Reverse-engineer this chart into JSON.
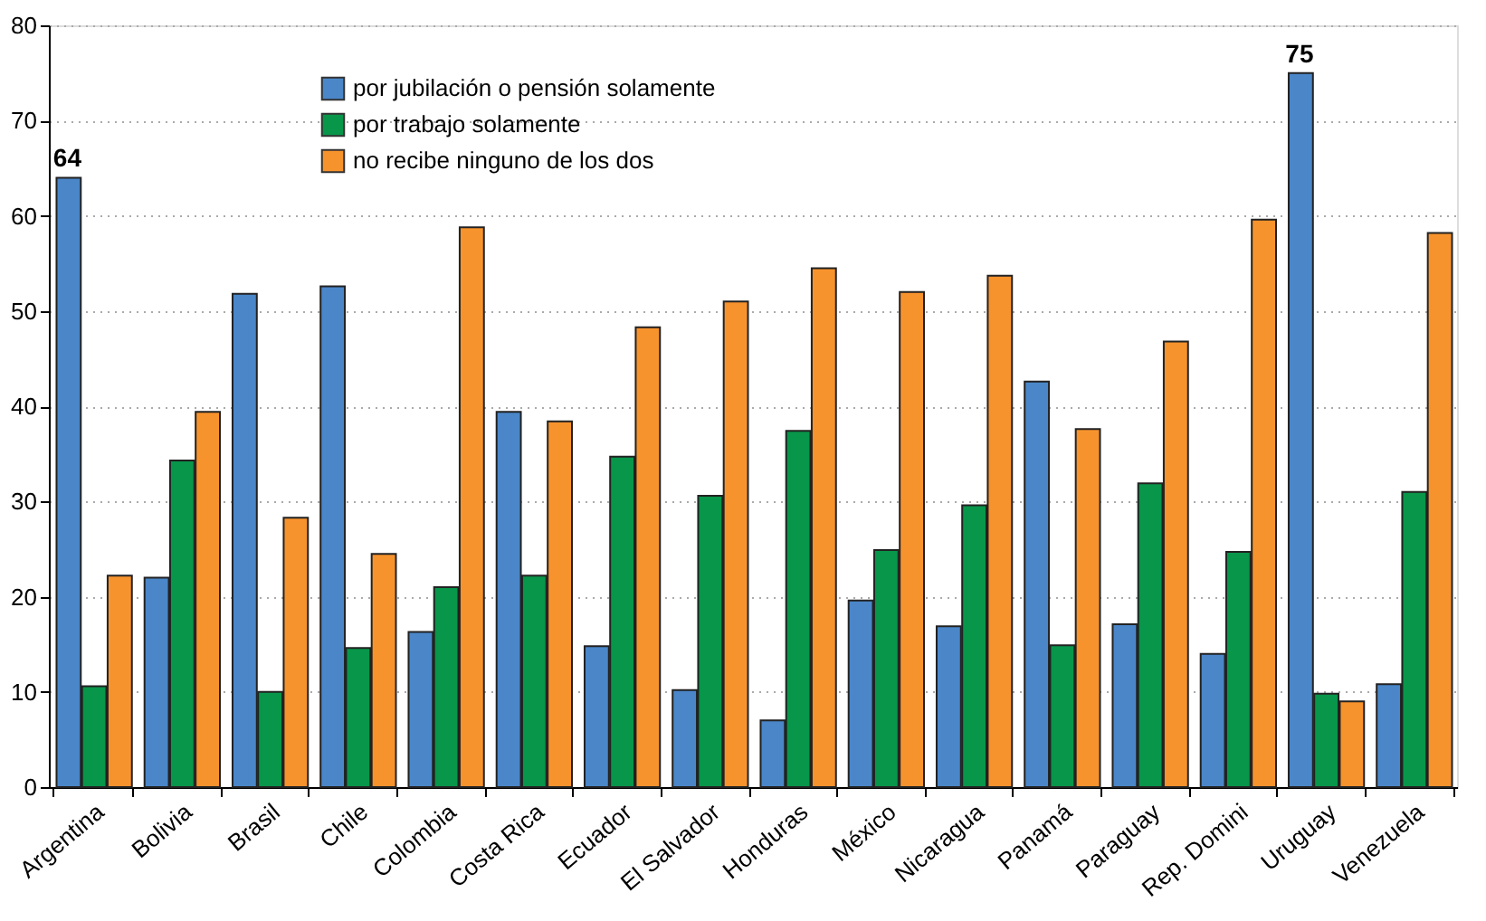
{
  "chart_data": {
    "type": "bar",
    "categories": [
      "Argentina",
      "Bolivia",
      "Brasil",
      "Chile",
      "Colombia",
      "Costa Rica",
      "Ecuador",
      "El Salvador",
      "Honduras",
      "México",
      "Nicaragua",
      "Panamá",
      "Paraguay",
      "Rep. Domini",
      "Uruguay",
      "Venezuela"
    ],
    "series": [
      {
        "name": "por jubilación o pensión solamente",
        "color": "#4a86c8",
        "values": [
          64,
          22,
          51.8,
          52.6,
          16.3,
          39.4,
          14.8,
          10.2,
          7,
          19.6,
          16.9,
          42.6,
          17.1,
          14,
          75,
          10.8
        ],
        "value_labels": [
          "64",
          null,
          null,
          null,
          null,
          null,
          null,
          null,
          null,
          null,
          null,
          null,
          null,
          null,
          "75",
          null
        ]
      },
      {
        "name": "por trabajo solamente",
        "color": "#08964a",
        "values": [
          10.6,
          34.3,
          10,
          14.6,
          21,
          22.2,
          34.7,
          30.6,
          37.4,
          24.9,
          29.6,
          14.9,
          31.9,
          24.7,
          9.8,
          31
        ]
      },
      {
        "name": "no recibe ninguno de los dos",
        "color": "#f7932d",
        "values": [
          22.2,
          39.4,
          28.3,
          24.5,
          58.8,
          38.4,
          48.3,
          51,
          54.5,
          52,
          53.7,
          37.6,
          46.8,
          59.6,
          9,
          58.2
        ]
      }
    ],
    "ylim": [
      0,
      80
    ],
    "yticks": [
      0,
      10,
      20,
      30,
      40,
      50,
      60,
      70,
      80
    ],
    "grid": "y",
    "legend": "top left"
  }
}
